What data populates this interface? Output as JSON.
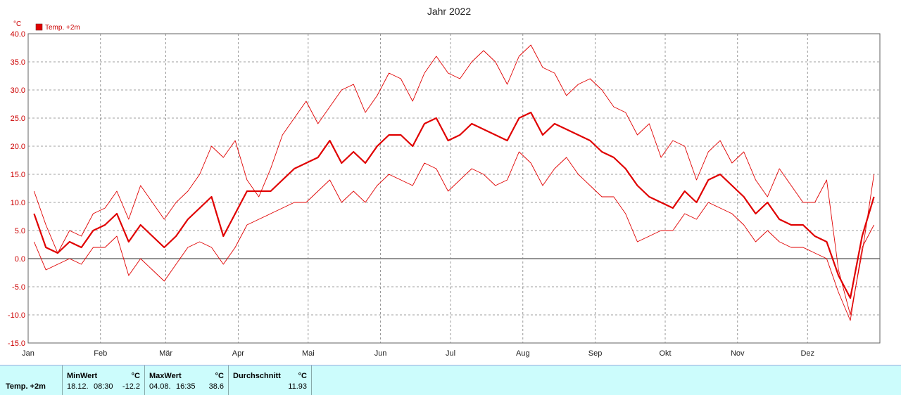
{
  "title": "Jahr 2022",
  "unit": "°C",
  "colors": {
    "series": "#e00000",
    "axis_text": "#cc0000",
    "grid": "#808080",
    "zero_line": "#555555",
    "stats_bg": "#ccfcfc"
  },
  "legend": {
    "label": "Temp. +2m",
    "placement": "top-left"
  },
  "chart_data": {
    "type": "line",
    "title": "Jahr 2022",
    "y_unit": "°C",
    "ylim": [
      -15,
      40
    ],
    "y_ticks": [
      "40.0",
      "35.0",
      "30.0",
      "25.0",
      "20.0",
      "15.0",
      "10.0",
      "5.0",
      "0.0",
      "-5.0",
      "-10.0",
      "-15.0"
    ],
    "x_ticks": [
      "Jan",
      "Feb",
      "Mär",
      "Apr",
      "Mai",
      "Jun",
      "Jul",
      "Aug",
      "Sep",
      "Okt",
      "Nov",
      "Dez"
    ],
    "grid": true,
    "series_points_per_month": 4,
    "series": [
      {
        "role": "max",
        "values": [
          12,
          6,
          1,
          5,
          4,
          8,
          9,
          12,
          7,
          13,
          10,
          7,
          10,
          12,
          15,
          20,
          18,
          21,
          14,
          11,
          16,
          22,
          25,
          28,
          24,
          27,
          30,
          31,
          26,
          29,
          33,
          32,
          28,
          33,
          36,
          33,
          32,
          35,
          37,
          35,
          31,
          36,
          38,
          34,
          33,
          29,
          31,
          32,
          30,
          27,
          26,
          22,
          24,
          18,
          21,
          20,
          14,
          19,
          21,
          17,
          19,
          14,
          11,
          16,
          13,
          10,
          10,
          14,
          -2,
          -10,
          1,
          15
        ]
      },
      {
        "role": "mean",
        "values": [
          8,
          2,
          1,
          3,
          2,
          5,
          6,
          8,
          3,
          6,
          4,
          2,
          4,
          7,
          9,
          11,
          4,
          8,
          12,
          12,
          12,
          14,
          16,
          17,
          18,
          21,
          17,
          19,
          17,
          20,
          22,
          22,
          20,
          24,
          25,
          21,
          22,
          24,
          23,
          22,
          21,
          25,
          26,
          22,
          24,
          23,
          22,
          21,
          19,
          18,
          16,
          13,
          11,
          10,
          9,
          12,
          10,
          14,
          15,
          13,
          11,
          8,
          10,
          7,
          6,
          6,
          4,
          3,
          -3,
          -7,
          4,
          11
        ]
      },
      {
        "role": "min",
        "values": [
          3,
          -2,
          -1,
          0,
          -1,
          2,
          2,
          4,
          -3,
          0,
          -2,
          -4,
          -1,
          2,
          3,
          2,
          -1,
          2,
          6,
          7,
          8,
          9,
          10,
          10,
          12,
          14,
          10,
          12,
          10,
          13,
          15,
          14,
          13,
          17,
          16,
          12,
          14,
          16,
          15,
          13,
          14,
          19,
          17,
          13,
          16,
          18,
          15,
          13,
          11,
          11,
          8,
          3,
          4,
          5,
          5,
          8,
          7,
          10,
          9,
          8,
          6,
          3,
          5,
          3,
          2,
          2,
          1,
          0,
          -6,
          -11,
          2,
          6
        ]
      }
    ]
  },
  "stats": {
    "row_label": "Temp. +2m",
    "min": {
      "header": "MinWert",
      "unit": "°C",
      "date": "18.12.",
      "time": "08:30",
      "value": "-12.2"
    },
    "max": {
      "header": "MaxWert",
      "unit": "°C",
      "date": "04.08.",
      "time": "16:35",
      "value": "38.6"
    },
    "avg": {
      "header": "Durchschnitt",
      "unit": "°C",
      "value": "11.93"
    }
  }
}
